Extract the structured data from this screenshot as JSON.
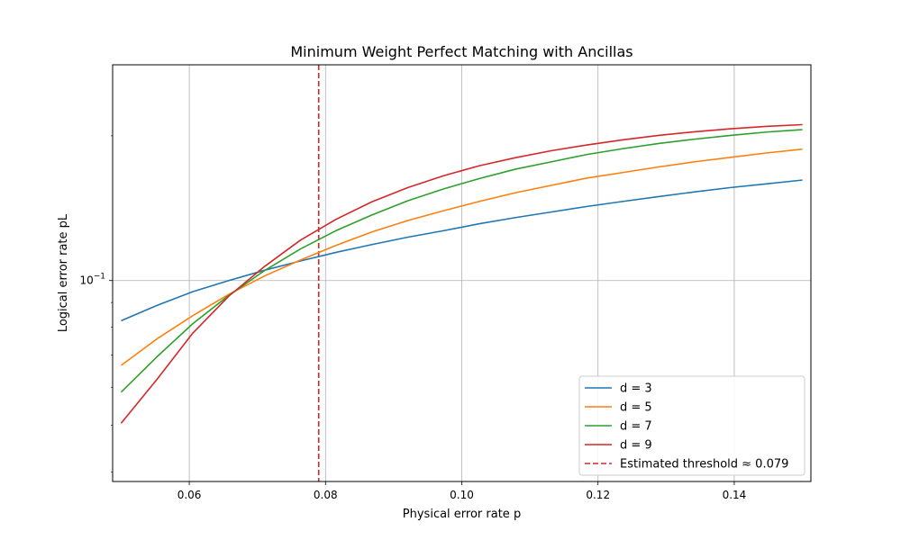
{
  "chart_data": {
    "type": "line",
    "title": "Minimum Weight Perfect Matching with Ancillas",
    "xlabel": "Physical error rate p",
    "ylabel": "Logical error rate pL",
    "xscale": "linear",
    "yscale": "log",
    "xlim": [
      0.04875,
      0.15125
    ],
    "ylim": [
      0.0382,
      0.281
    ],
    "grid": true,
    "legend_placement": "lower-right",
    "x_ticks": [
      {
        "value": 0.06,
        "label": "0.06"
      },
      {
        "value": 0.08,
        "label": "0.08"
      },
      {
        "value": 0.1,
        "label": "0.10"
      },
      {
        "value": 0.12,
        "label": "0.12"
      },
      {
        "value": 0.14,
        "label": "0.14"
      }
    ],
    "y_ticks": [
      {
        "value": 0.1,
        "base": "10",
        "exp": "−1"
      }
    ],
    "x": [
      0.05,
      0.0553,
      0.0605,
      0.0658,
      0.0711,
      0.0763,
      0.0816,
      0.0868,
      0.0921,
      0.0974,
      0.1026,
      0.1079,
      0.1132,
      0.1184,
      0.1237,
      0.1289,
      0.1342,
      0.1395,
      0.1447,
      0.15
    ],
    "series": [
      {
        "name": "d = 3",
        "color": "#1f77b4",
        "values": [
          0.0825,
          0.0888,
          0.0948,
          0.1,
          0.1051,
          0.1098,
          0.1145,
          0.1188,
          0.1231,
          0.127,
          0.1313,
          0.1352,
          0.1389,
          0.1426,
          0.1461,
          0.1495,
          0.1529,
          0.1561,
          0.1589,
          0.1618
        ]
      },
      {
        "name": "d = 5",
        "color": "#ff7f0e",
        "values": [
          0.0666,
          0.0757,
          0.0845,
          0.0936,
          0.1023,
          0.1103,
          0.1184,
          0.1262,
          0.1333,
          0.1398,
          0.1461,
          0.1523,
          0.1578,
          0.1634,
          0.1678,
          0.1723,
          0.1766,
          0.1804,
          0.1842,
          0.1876
        ]
      },
      {
        "name": "d = 7",
        "color": "#2ca02c",
        "values": [
          0.0586,
          0.0695,
          0.0813,
          0.0931,
          0.105,
          0.1163,
          0.1271,
          0.1369,
          0.1466,
          0.1552,
          0.163,
          0.1705,
          0.1766,
          0.1829,
          0.1881,
          0.1928,
          0.1968,
          0.2004,
          0.2036,
          0.206
        ]
      },
      {
        "name": "d = 9",
        "color": "#d62728",
        "values": [
          0.0505,
          0.0624,
          0.0777,
          0.0928,
          0.1071,
          0.1213,
          0.1342,
          0.1458,
          0.1561,
          0.1653,
          0.1733,
          0.1801,
          0.1863,
          0.1914,
          0.1962,
          0.2004,
          0.2039,
          0.2069,
          0.2092,
          0.211
        ]
      }
    ],
    "threshold": {
      "label": "Estimated threshold ≈ 0.079",
      "value": 0.079,
      "color": "#d62728",
      "style": "dashed"
    }
  }
}
